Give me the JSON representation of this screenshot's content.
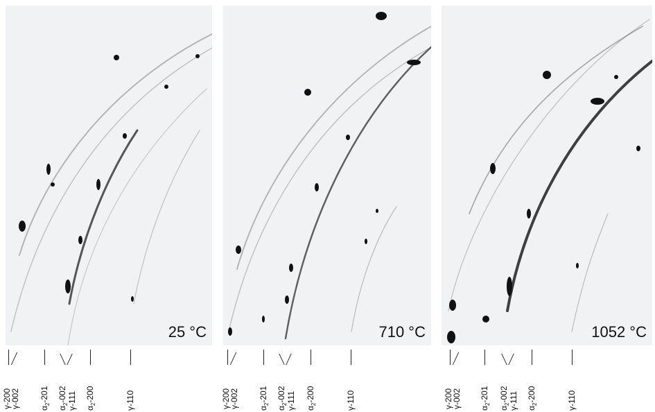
{
  "panels": [
    {
      "temperature": "25 °C"
    },
    {
      "temperature": "710 °C"
    },
    {
      "temperature": "1052 °C"
    }
  ],
  "peaks": {
    "gamma_200": "γ-200",
    "gamma_002": "γ-002",
    "alpha2_201_prefix": "α",
    "alpha2_201_sub": "2",
    "alpha2_201_suffix": "-201",
    "alpha2_002_prefix": "α",
    "alpha2_002_sub": "2",
    "alpha2_002_suffix": "-002",
    "gamma_111": "γ-111",
    "alpha2_200_prefix": "α",
    "alpha2_200_sub": "2",
    "alpha2_200_suffix": "-200",
    "gamma_110": "γ-110"
  }
}
